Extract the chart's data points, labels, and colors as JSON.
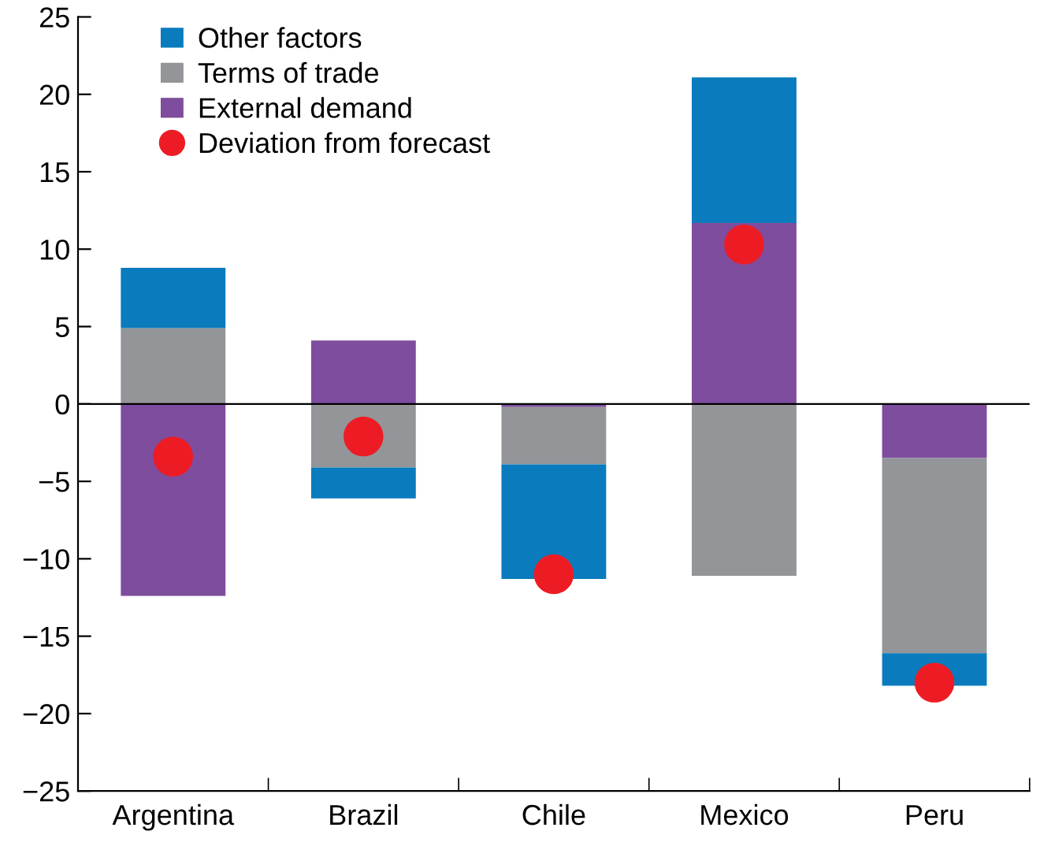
{
  "chart_data": {
    "type": "bar",
    "stacked": true,
    "categories": [
      "Argentina",
      "Brazil",
      "Chile",
      "Mexico",
      "Peru"
    ],
    "series": [
      {
        "name": "External demand",
        "color": "#7e4d9e",
        "values": [
          -12.4,
          4.1,
          -0.2,
          11.7,
          -3.5
        ]
      },
      {
        "name": "Terms of trade",
        "color": "#939598",
        "values": [
          4.9,
          -4.1,
          -3.7,
          -11.1,
          -12.6
        ]
      },
      {
        "name": "Other factors",
        "color": "#0a7bbd",
        "values": [
          3.9,
          -2.0,
          -7.4,
          9.4,
          -2.1
        ]
      },
      {
        "name": "Deviation from forecast",
        "color": "#ed1c24",
        "type": "scatter",
        "x": [
          "Argentina",
          "Brazil",
          "Chile",
          "Mexico",
          "Peru"
        ],
        "values": [
          -3.4,
          -2.1,
          -11.0,
          10.3,
          -18.0
        ]
      }
    ],
    "ylim": [
      -25,
      25
    ],
    "yticks": [
      {
        "value": -25,
        "label": "−25"
      },
      {
        "value": -20,
        "label": "−20"
      },
      {
        "value": -15,
        "label": "−15"
      },
      {
        "value": -10,
        "label": "−10"
      },
      {
        "value": -5,
        "label": "−5"
      },
      0,
      5,
      10,
      15,
      20,
      25
    ],
    "ref_lines": [
      {
        "axis": "y",
        "value": 0,
        "color": "#000000"
      }
    ],
    "legend": "top left",
    "marker": "circle"
  }
}
